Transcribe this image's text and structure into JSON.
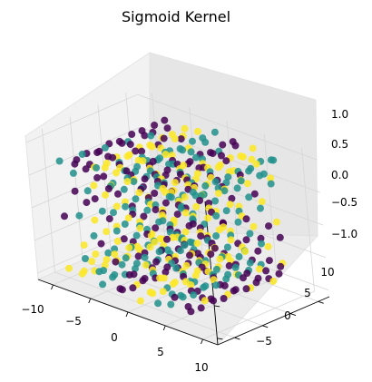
{
  "chart_data": {
    "type": "scatter3d",
    "title": "Sigmoid Kernel",
    "xlabel": "",
    "ylabel": "",
    "zlabel": "",
    "xlim": [
      -12,
      12
    ],
    "ylim": [
      -8,
      12
    ],
    "zlim": [
      -1.1,
      1.1
    ],
    "x_ticks": [
      -10,
      -5,
      0,
      5,
      10
    ],
    "x_tick_labels": [
      "−10",
      "−5",
      "0",
      "5",
      "10"
    ],
    "y_ticks": [
      -5,
      0,
      5,
      10
    ],
    "y_tick_labels": [
      "−5",
      "0",
      "5",
      "10"
    ],
    "z_ticks": [
      -1.0,
      -0.5,
      0.0,
      0.5,
      1.0
    ],
    "z_tick_labels": [
      "−1.0",
      "−0.5",
      "0.0",
      "0.5",
      "1.0"
    ],
    "grid": true,
    "legend": "none",
    "series": [
      {
        "color": "#440154",
        "spiral": {
          "t_range": [
            -8.4,
            8.4
          ],
          "y_range": [
            -7,
            11
          ],
          "offset": 0
        },
        "points": 170
      },
      {
        "color": "#21918c",
        "spiral": {
          "t_range": [
            -8.4,
            8.4
          ],
          "y_range": [
            -7,
            11
          ],
          "offset": 2.094
        },
        "points": 170
      },
      {
        "color": "#fde725",
        "spiral": {
          "t_range": [
            -8.4,
            8.4
          ],
          "y_range": [
            -7,
            11
          ],
          "offset": 4.189
        },
        "points": 170
      }
    ]
  }
}
